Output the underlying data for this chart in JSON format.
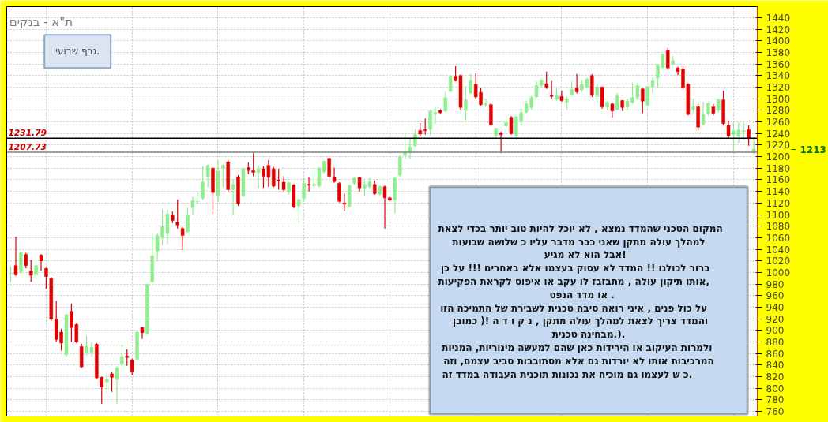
{
  "chart_data": {
    "type": "candlestick",
    "title": "ת\"א - בנקים",
    "categories": [
      null,
      null,
      null,
      null,
      null,
      null,
      null,
      null,
      null,
      null,
      null,
      null,
      null,
      null,
      null,
      null,
      null,
      null,
      null,
      null,
      null,
      null,
      null,
      null,
      null,
      null,
      null,
      null,
      null,
      null,
      null,
      null,
      null,
      null,
      null,
      null,
      null,
      null,
      null,
      null,
      null,
      null,
      null,
      null,
      null,
      null,
      null,
      null,
      null,
      null,
      null,
      null,
      null,
      null,
      null,
      null,
      null,
      null,
      null,
      null,
      null,
      null,
      null,
      null,
      null,
      null,
      null,
      null,
      null,
      null,
      null,
      null,
      null,
      null,
      null,
      null,
      null,
      null,
      null,
      null,
      null,
      null,
      null,
      null,
      null,
      null,
      null,
      null,
      null,
      null,
      null,
      null,
      null,
      null,
      null,
      null,
      null,
      null,
      null,
      null,
      null,
      null,
      null,
      null,
      null,
      null,
      null,
      null,
      null,
      null,
      null,
      null,
      null,
      null,
      null,
      null,
      null,
      null,
      null,
      null,
      null,
      null,
      null,
      null,
      null,
      null,
      null,
      null,
      null,
      null,
      null,
      null,
      null,
      null,
      null,
      null,
      null,
      null,
      null,
      null,
      null,
      null,
      null,
      null,
      null,
      null,
      null,
      null
    ],
    "ohlc": [
      [
        997,
        1010,
        984,
        998
      ],
      [
        1012,
        1062,
        994,
        996
      ],
      [
        1001,
        1036,
        998,
        1034
      ],
      [
        1031,
        1034,
        1007,
        1012
      ],
      [
        1003,
        1022,
        984,
        995
      ],
      [
        996,
        1022,
        989,
        1012
      ],
      [
        1030,
        1032,
        1003,
        1020
      ],
      [
        1007,
        1008,
        972,
        993
      ],
      [
        990,
        992,
        916,
        919
      ],
      [
        920,
        951,
        880,
        884
      ],
      [
        897,
        903,
        865,
        878
      ],
      [
        858,
        929,
        855,
        927
      ],
      [
        933,
        946,
        880,
        905
      ],
      [
        910,
        912,
        878,
        880
      ],
      [
        872,
        877,
        835,
        837
      ],
      [
        861,
        891,
        856,
        873
      ],
      [
        862,
        880,
        855,
        871
      ],
      [
        876,
        878,
        816,
        818
      ],
      [
        819,
        820,
        773,
        802
      ],
      [
        811,
        826,
        794,
        816
      ],
      [
        825,
        828,
        794,
        819
      ],
      [
        815,
        838,
        773,
        835
      ],
      [
        842,
        875,
        828,
        855
      ],
      [
        856,
        867,
        839,
        853
      ],
      [
        849,
        851,
        823,
        828
      ],
      [
        850,
        899,
        848,
        897
      ],
      [
        905,
        906,
        885,
        896
      ],
      [
        894,
        981,
        892,
        979
      ],
      [
        984,
        1067,
        982,
        1029
      ],
      [
        1037,
        1067,
        1019,
        1064
      ],
      [
        1060,
        1109,
        1048,
        1080
      ],
      [
        1067,
        1109,
        1050,
        1101
      ],
      [
        1099,
        1105,
        1085,
        1090
      ],
      [
        1087,
        1126,
        1076,
        1082
      ],
      [
        1076,
        1079,
        1039,
        1064
      ],
      [
        1070,
        1112,
        1068,
        1100
      ],
      [
        1112,
        1131,
        1100,
        1124
      ],
      [
        1122,
        1139,
        1120,
        1123
      ],
      [
        1128,
        1183,
        1125,
        1156
      ],
      [
        1166,
        1187,
        1147,
        1185
      ],
      [
        1180,
        1182,
        1102,
        1138
      ],
      [
        1133,
        1194,
        1121,
        1175
      ],
      [
        1180,
        1187,
        1147,
        1185
      ],
      [
        1191,
        1194,
        1140,
        1143
      ],
      [
        1143,
        1161,
        1100,
        1152
      ],
      [
        1165,
        1168,
        1115,
        1119
      ],
      [
        1132,
        1181,
        1130,
        1179
      ],
      [
        1181,
        1190,
        1170,
        1176
      ],
      [
        1176,
        1206,
        1166,
        1173
      ],
      [
        1173,
        1185,
        1145,
        1179
      ],
      [
        1179,
        1183,
        1146,
        1166
      ],
      [
        1185,
        1194,
        1148,
        1164
      ],
      [
        1179,
        1182,
        1147,
        1149
      ],
      [
        1160,
        1179,
        1143,
        1158
      ],
      [
        1156,
        1166,
        1140,
        1143
      ],
      [
        1139,
        1158,
        1134,
        1155
      ],
      [
        1151,
        1153,
        1111,
        1113
      ],
      [
        1115,
        1128,
        1085,
        1126
      ],
      [
        1128,
        1163,
        1123,
        1154
      ],
      [
        1152,
        1164,
        1140,
        1151
      ],
      [
        1150,
        1176,
        1148,
        1152
      ],
      [
        1149,
        1182,
        1147,
        1180
      ],
      [
        1174,
        1193,
        1171,
        1192
      ],
      [
        1197,
        1198,
        1163,
        1166
      ],
      [
        1165,
        1181,
        1155,
        1157
      ],
      [
        1154,
        1156,
        1121,
        1123
      ],
      [
        1120,
        1136,
        1106,
        1118
      ],
      [
        1114,
        1152,
        1112,
        1150
      ],
      [
        1154,
        1165,
        1152,
        1163
      ],
      [
        1164,
        1165,
        1140,
        1146
      ],
      [
        1146,
        1159,
        1132,
        1152
      ],
      [
        1148,
        1164,
        1145,
        1157
      ],
      [
        1152,
        1159,
        1134,
        1136
      ],
      [
        1135,
        1150,
        1133,
        1148
      ],
      [
        1148,
        1150,
        1076,
        1129
      ],
      [
        1129,
        1131,
        1122,
        1125
      ],
      [
        1126,
        1165,
        1102,
        1163
      ],
      [
        1168,
        1203,
        1165,
        1199
      ],
      [
        1202,
        1239,
        1196,
        1208
      ],
      [
        1208,
        1232,
        1196,
        1217
      ],
      [
        1219,
        1247,
        1217,
        1239
      ],
      [
        1245,
        1258,
        1235,
        1239
      ],
      [
        1247,
        1266,
        1238,
        1245
      ],
      [
        1247,
        1281,
        1237,
        1279
      ],
      [
        1274,
        1285,
        1256,
        1276
      ],
      [
        1280,
        1282,
        1274,
        1276
      ],
      [
        1279,
        1312,
        1277,
        1302
      ],
      [
        1313,
        1341,
        1311,
        1339
      ],
      [
        1339,
        1356,
        1330,
        1331
      ],
      [
        1340,
        1342,
        1280,
        1285
      ],
      [
        1280,
        1321,
        1263,
        1298
      ],
      [
        1310,
        1344,
        1308,
        1331
      ],
      [
        1325,
        1344,
        1300,
        1303
      ],
      [
        1311,
        1318,
        1288,
        1290
      ],
      [
        1289,
        1300,
        1286,
        1292
      ],
      [
        1290,
        1292,
        1253,
        1255
      ],
      [
        1237,
        1250,
        1232,
        1249
      ],
      [
        1241,
        1243,
        1206,
        1238
      ],
      [
        1253,
        1270,
        1251,
        1259
      ],
      [
        1268,
        1270,
        1238,
        1240
      ],
      [
        1237,
        1271,
        1229,
        1269
      ],
      [
        1262,
        1284,
        1254,
        1276
      ],
      [
        1277,
        1297,
        1275,
        1291
      ],
      [
        1285,
        1305,
        1282,
        1302
      ],
      [
        1303,
        1330,
        1301,
        1323
      ],
      [
        1323,
        1335,
        1320,
        1331
      ],
      [
        1326,
        1347,
        1317,
        1320
      ],
      [
        1306,
        1331,
        1300,
        1304
      ],
      [
        1299,
        1319,
        1297,
        1305
      ],
      [
        1304,
        1314,
        1295,
        1297
      ],
      [
        1294,
        1303,
        1282,
        1300
      ],
      [
        1307,
        1330,
        1305,
        1316
      ],
      [
        1319,
        1343,
        1309,
        1312
      ],
      [
        1316,
        1331,
        1312,
        1325
      ],
      [
        1321,
        1336,
        1318,
        1334
      ],
      [
        1340,
        1343,
        1303,
        1306
      ],
      [
        1304,
        1325,
        1294,
        1320
      ],
      [
        1320,
        1321,
        1283,
        1286
      ],
      [
        1286,
        1296,
        1280,
        1294
      ],
      [
        1291,
        1293,
        1268,
        1279
      ],
      [
        1282,
        1310,
        1280,
        1305
      ],
      [
        1297,
        1298,
        1279,
        1285
      ],
      [
        1286,
        1300,
        1280,
        1296
      ],
      [
        1294,
        1328,
        1291,
        1302
      ],
      [
        1302,
        1328,
        1299,
        1323
      ],
      [
        1317,
        1319,
        1275,
        1296
      ],
      [
        1289,
        1322,
        1287,
        1321
      ],
      [
        1321,
        1337,
        1310,
        1331
      ],
      [
        1336,
        1360,
        1319,
        1358
      ],
      [
        1354,
        1378,
        1351,
        1376
      ],
      [
        1383,
        1388,
        1350,
        1353
      ],
      [
        1360,
        1374,
        1358,
        1366
      ],
      [
        1353,
        1355,
        1341,
        1347
      ],
      [
        1351,
        1356,
        1315,
        1319
      ],
      [
        1325,
        1327,
        1271,
        1273
      ],
      [
        1282,
        1299,
        1275,
        1286
      ],
      [
        1286,
        1291,
        1246,
        1251
      ],
      [
        1256,
        1295,
        1254,
        1273
      ],
      [
        1274,
        1294,
        1270,
        1292
      ],
      [
        1286,
        1291,
        1271,
        1275
      ],
      [
        1280,
        1300,
        1276,
        1298
      ],
      [
        1298,
        1314,
        1254,
        1257
      ],
      [
        1254,
        1262,
        1231,
        1236
      ],
      [
        1238,
        1259,
        1208,
        1245
      ],
      [
        1236,
        1259,
        1224,
        1246
      ],
      [
        1243,
        1259,
        1229,
        1245
      ],
      [
        1247,
        1254,
        1219,
        1231
      ],
      [
        1208,
        1231,
        1204,
        1213
      ]
    ],
    "colors": [
      "#90ee90",
      "#e00000",
      "#90ee90",
      "#e00000",
      "#e00000",
      "#90ee90",
      "#e00000",
      "#e00000",
      "#e00000",
      "#e00000",
      "#e00000",
      "#90ee90",
      "#e00000",
      "#e00000",
      "#e00000",
      "#90ee90",
      "#90ee90",
      "#e00000",
      "#e00000",
      "#90ee90",
      "#e00000",
      "#90ee90",
      "#90ee90",
      "#e00000",
      "#e00000",
      "#90ee90",
      "#e00000",
      "#90ee90",
      "#90ee90",
      "#90ee90",
      "#90ee90",
      "#90ee90",
      "#e00000",
      "#e00000",
      "#e00000",
      "#90ee90",
      "#90ee90",
      "#90ee90",
      "#90ee90",
      "#90ee90",
      "#e00000",
      "#90ee90",
      "#90ee90",
      "#e00000",
      "#90ee90",
      "#e00000",
      "#90ee90",
      "#e00000",
      "#e00000",
      "#90ee90",
      "#e00000",
      "#e00000",
      "#e00000",
      "#e00000",
      "#e00000",
      "#90ee90",
      "#e00000",
      "#90ee90",
      "#90ee90",
      "#e00000",
      "#90ee90",
      "#90ee90",
      "#90ee90",
      "#e00000",
      "#e00000",
      "#e00000",
      "#e00000",
      "#90ee90",
      "#90ee90",
      "#e00000",
      "#90ee90",
      "#90ee90",
      "#e00000",
      "#90ee90",
      "#e00000",
      "#e00000",
      "#90ee90",
      "#90ee90",
      "#90ee90",
      "#90ee90",
      "#90ee90",
      "#e00000",
      "#e00000",
      "#90ee90",
      "#90ee90",
      "#e00000",
      "#90ee90",
      "#90ee90",
      "#e00000",
      "#e00000",
      "#90ee90",
      "#90ee90",
      "#e00000",
      "#e00000",
      "#90ee90",
      "#e00000",
      "#90ee90",
      "#e00000",
      "#90ee90",
      "#e00000",
      "#90ee90",
      "#90ee90",
      "#90ee90",
      "#90ee90",
      "#90ee90",
      "#90ee90",
      "#e00000",
      "#e00000",
      "#90ee90",
      "#e00000",
      "#90ee90",
      "#90ee90",
      "#e00000",
      "#90ee90",
      "#90ee90",
      "#e00000",
      "#90ee90",
      "#e00000",
      "#90ee90",
      "#e00000",
      "#90ee90",
      "#e00000",
      "#90ee90",
      "#90ee90",
      "#90ee90",
      "#e00000",
      "#90ee90",
      "#90ee90",
      "#90ee90",
      "#90ee90",
      "#e00000",
      "#90ee90",
      "#e00000",
      "#e00000",
      "#e00000",
      "#90ee90",
      "#e00000",
      "#90ee90",
      "#90ee90",
      "#e00000",
      "#90ee90",
      "#e00000",
      "#e00000",
      "#90ee90",
      "#90ee90",
      "#90ee90",
      "#e00000",
      "#90ee90"
    ],
    "ylim": [
      752,
      1459
    ],
    "yticks": [
      760,
      780,
      800,
      820,
      840,
      860,
      880,
      900,
      920,
      940,
      960,
      980,
      1000,
      1020,
      1040,
      1060,
      1080,
      1100,
      1120,
      1140,
      1160,
      1180,
      1200,
      1220,
      1240,
      1260,
      1280,
      1300,
      1320,
      1340,
      1360,
      1380,
      1400,
      1420,
      1440
    ],
    "grid": true,
    "tick_labels": "y",
    "ref_lines": [
      {
        "axis": "y",
        "value": 1231.79,
        "label": "1231.79",
        "color": "#000000"
      },
      {
        "axis": "y",
        "value": 1207.73,
        "label": "1207.73",
        "color": "#808080"
      }
    ],
    "annotations": [
      "1213",
      "גרף שבועי.",
      "המקום  הטכני  שהמדד נמצא , לא  יוכל להיות טוב  יותר  בכדי לצאת\nלמהלך עולה  מתקן שאני כבר  מדבר  עליו  כ  שלושה  שבועות\nאבל הוא  לא  מגיע!\nברור  לכולנו !!  המדד  לא  עסוק  בעצמו  אלא   באחרים !!! על כן\nאותו  תיקון  עולה  ,  מתבזבז לו  עקב   או איפוס  לקראת  הפקיעות,\nאו  מדד    הנפט .\nעל כול פנים  , איני רואה   סיבה  טכנית  לשבירת   של  התמיכה  הזו\nוהמדד  צריך  לצאת למהלך עולה  מתקן , נ ק ו ד  ה !(  כמובן\nמבחינה טכנית.).\nולמרות  העיקוב  או  הירידות כאן  שהם   למעשה מינוריות,  המניות\nהמרכיבות אותו  לא  יורדות גם  אלא  מסתובבות סביב   עצמם, וזה\nכ ש  לעצמו    גם  מוכיח  את  נכונות  תוכנית  העבודה    במדד  זה."
    ]
  }
}
